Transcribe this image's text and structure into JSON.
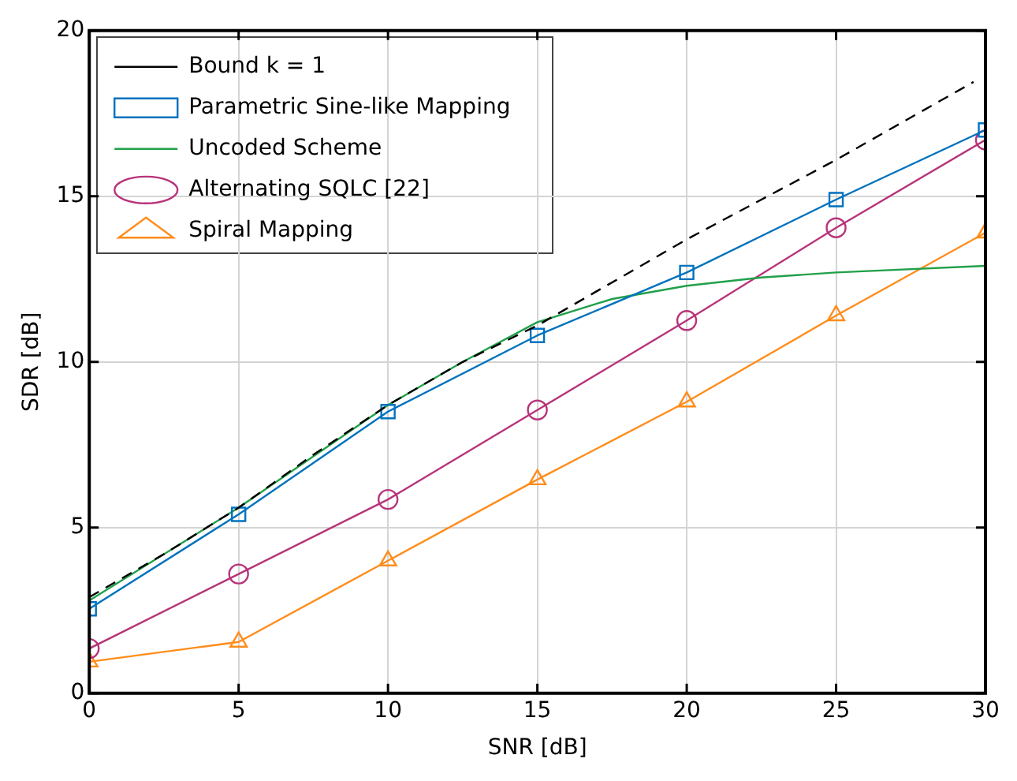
{
  "chart_data": {
    "type": "line",
    "xlabel": "SNR [dB]",
    "ylabel": "SDR [dB]",
    "xlim": [
      0,
      30
    ],
    "xticks": [
      0,
      5,
      10,
      15,
      20,
      25,
      30
    ],
    "ylim": [
      0,
      20
    ],
    "yticks": [
      0,
      5,
      10,
      15,
      20
    ],
    "grid": true,
    "legend": "top left",
    "series": [
      {
        "name": "Bound k = 1",
        "color": "#000000",
        "line_style": "dashed",
        "marker": "none",
        "x": [
          0,
          2.5,
          5,
          7.5,
          10,
          12.5,
          15,
          20,
          25,
          29.6
        ],
        "values": [
          2.9,
          4.2,
          5.6,
          7.2,
          8.7,
          10.0,
          11.1,
          13.7,
          16.1,
          18.45
        ]
      },
      {
        "name": "Parametric Sine-like Mapping",
        "color": "#0072bd",
        "line_style": "solid",
        "marker": "square",
        "x": [
          0,
          5,
          10,
          15,
          20,
          25,
          30
        ],
        "values": [
          2.55,
          5.4,
          8.5,
          10.8,
          12.7,
          14.9,
          17.0
        ]
      },
      {
        "name": "Uncoded Scheme",
        "color": "#21a04a",
        "line_style": "solid",
        "marker": "none",
        "x": [
          0,
          5,
          10,
          12.5,
          15,
          17.5,
          20,
          22.5,
          25,
          30
        ],
        "values": [
          2.8,
          5.6,
          8.7,
          10.0,
          11.2,
          11.9,
          12.3,
          12.55,
          12.7,
          12.9
        ]
      },
      {
        "name": "Alternating SQLC [22]",
        "color": "#b8337a",
        "line_style": "solid",
        "marker": "circle",
        "x": [
          0,
          5,
          10,
          15,
          20,
          25,
          30
        ],
        "values": [
          1.35,
          3.6,
          5.85,
          8.55,
          11.25,
          14.05,
          16.7
        ]
      },
      {
        "name": "Spiral Mapping",
        "color": "#ff8c1a",
        "line_style": "solid",
        "marker": "triangle",
        "x": [
          0,
          5,
          10,
          15,
          20,
          25,
          30
        ],
        "values": [
          0.95,
          1.55,
          4.0,
          6.45,
          8.8,
          11.4,
          13.9
        ]
      }
    ]
  }
}
